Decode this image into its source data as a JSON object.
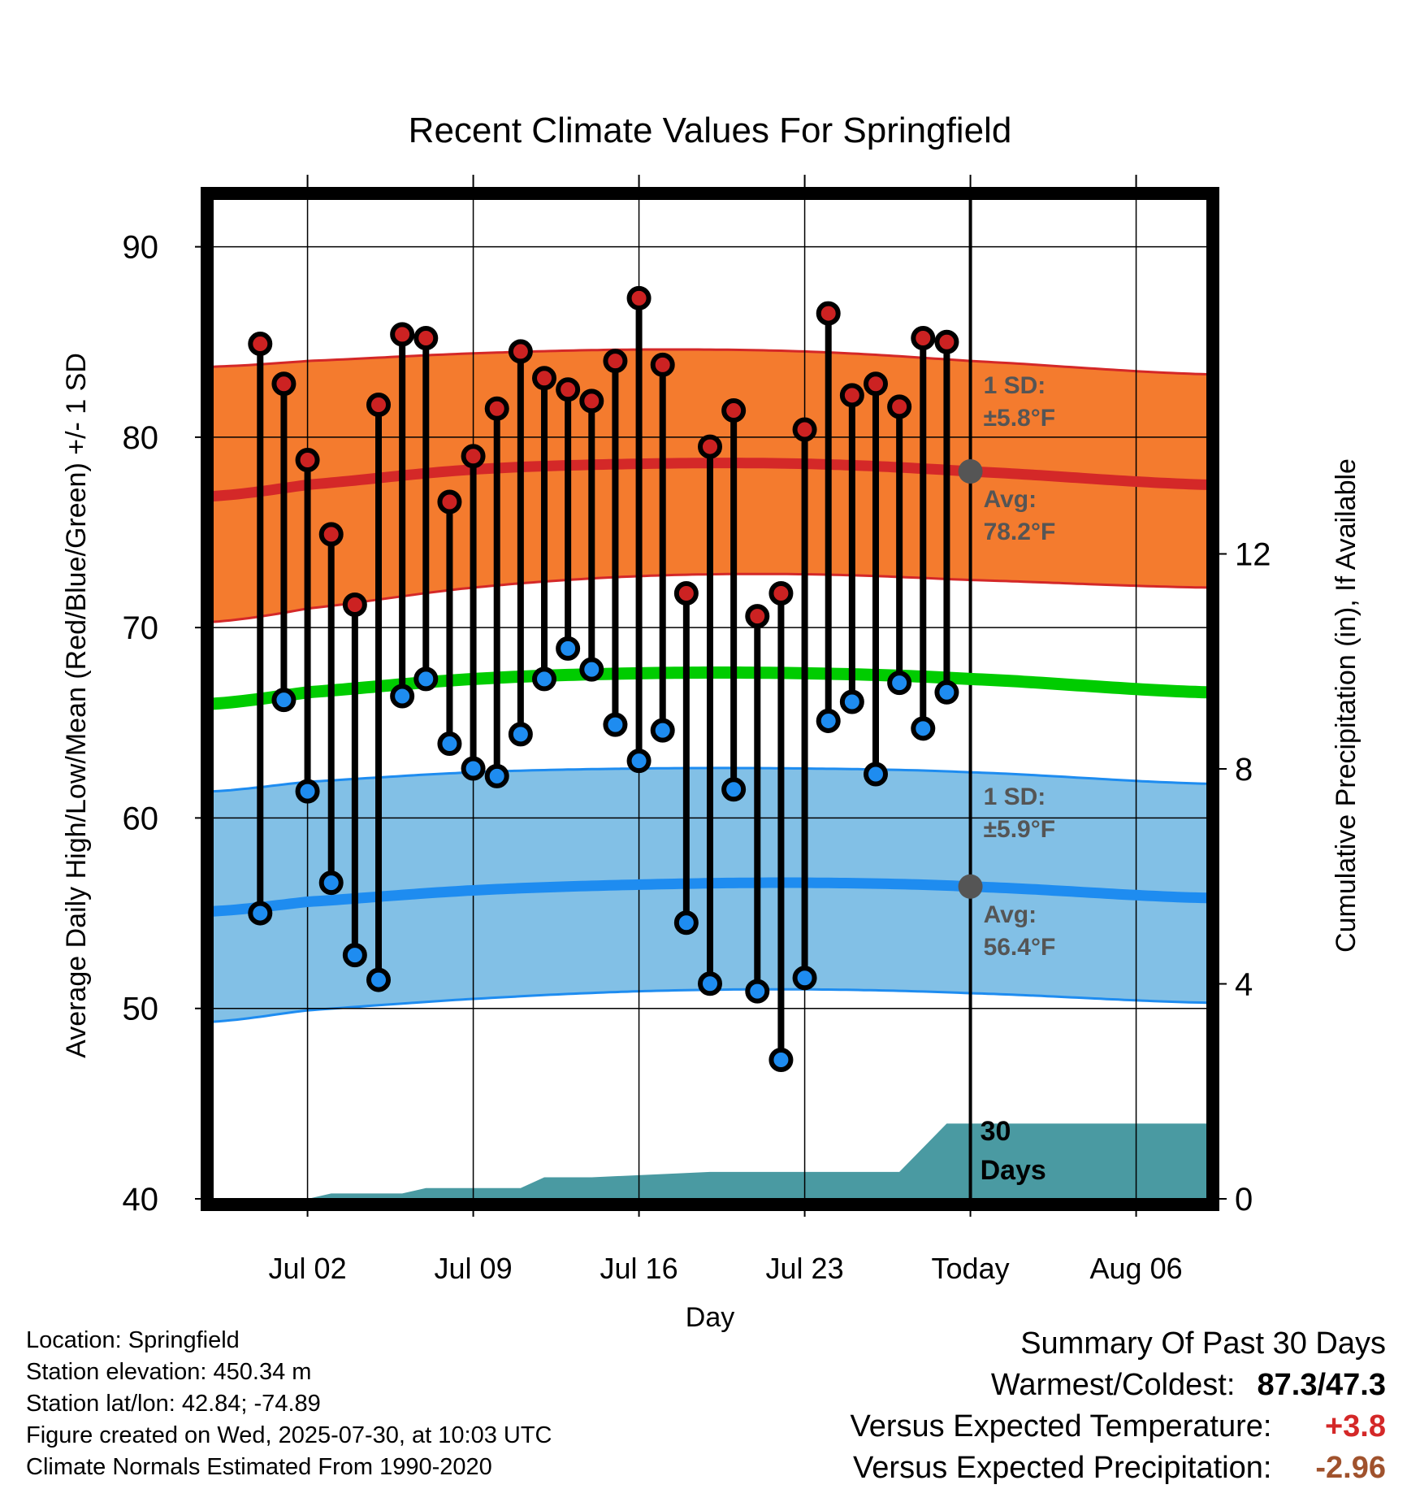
{
  "chart_data": {
    "type": "line",
    "title": "Recent Climate Values For Springfield",
    "xlabel": "Day",
    "ylabel": "Average Daily High/Low/Mean (Red/Blue/Green) +/- 1 SD",
    "y2label": "Cumulative Precipitation (in), If Available",
    "ylim": [
      40,
      92.5
    ],
    "y2lim": [
      0,
      18.6
    ],
    "xlim": [
      "2025-06-28",
      "2025-08-09"
    ],
    "x_ticks": [
      "Jul 02",
      "Jul 09",
      "Jul 16",
      "Jul 23",
      "Today",
      "Aug 06"
    ],
    "y_ticks": [
      40,
      50,
      60,
      70,
      80,
      90
    ],
    "y2_ticks": [
      0,
      4,
      8,
      12
    ],
    "today": "2025-07-30",
    "grid": true,
    "observed": {
      "dates": [
        "2025-06-30",
        "2025-07-01",
        "2025-07-02",
        "2025-07-03",
        "2025-07-04",
        "2025-07-05",
        "2025-07-06",
        "2025-07-07",
        "2025-07-08",
        "2025-07-09",
        "2025-07-10",
        "2025-07-11",
        "2025-07-12",
        "2025-07-13",
        "2025-07-14",
        "2025-07-15",
        "2025-07-16",
        "2025-07-17",
        "2025-07-18",
        "2025-07-19",
        "2025-07-20",
        "2025-07-21",
        "2025-07-22",
        "2025-07-23",
        "2025-07-24",
        "2025-07-25",
        "2025-07-26",
        "2025-07-27",
        "2025-07-28",
        "2025-07-29"
      ],
      "high": [
        84.9,
        82.8,
        78.8,
        74.9,
        71.2,
        81.7,
        85.4,
        85.2,
        76.6,
        79.0,
        81.5,
        84.5,
        83.1,
        82.5,
        81.9,
        84.0,
        87.3,
        83.8,
        71.8,
        79.5,
        81.4,
        70.6,
        71.8,
        80.4,
        86.5,
        82.2,
        82.8,
        81.6,
        85.2,
        85.0
      ],
      "low": [
        55.0,
        66.2,
        61.4,
        56.6,
        52.8,
        51.5,
        66.4,
        67.3,
        63.9,
        62.6,
        62.2,
        64.4,
        67.3,
        68.9,
        67.8,
        64.9,
        63.0,
        64.6,
        54.5,
        51.3,
        61.5,
        50.9,
        47.3,
        51.6,
        65.1,
        66.1,
        62.3,
        67.1,
        64.7,
        66.6
      ]
    },
    "normals": {
      "dates": [
        "2025-06-28",
        "2025-07-02",
        "2025-07-09",
        "2025-07-16",
        "2025-07-23",
        "2025-07-30",
        "2025-08-09"
      ],
      "avg_high": [
        76.9,
        77.5,
        78.3,
        78.6,
        78.6,
        78.2,
        77.5
      ],
      "avg_low": [
        55.1,
        55.6,
        56.2,
        56.5,
        56.6,
        56.4,
        55.8
      ],
      "avg_mean": [
        66.0,
        66.6,
        67.3,
        67.6,
        67.6,
        67.3,
        66.6
      ],
      "high_sd_upper": [
        83.7,
        84.0,
        84.4,
        84.6,
        84.5,
        84.0,
        83.3
      ],
      "high_sd_lower": [
        70.3,
        71.0,
        72.1,
        72.7,
        72.8,
        72.5,
        72.1
      ],
      "low_sd_upper": [
        61.4,
        61.9,
        62.4,
        62.6,
        62.6,
        62.4,
        61.8
      ],
      "low_sd_lower": [
        49.3,
        49.9,
        50.5,
        50.9,
        51.0,
        50.8,
        50.3
      ]
    },
    "precip_cumulative": {
      "dates": [
        "2025-06-28",
        "2025-07-01",
        "2025-07-02",
        "2025-07-03",
        "2025-07-06",
        "2025-07-07",
        "2025-07-11",
        "2025-07-12",
        "2025-07-14",
        "2025-07-19",
        "2025-07-20",
        "2025-07-26",
        "2025-07-27",
        "2025-07-29",
        "2025-08-09"
      ],
      "values": [
        0.0,
        0.0,
        0.0,
        0.1,
        0.1,
        0.2,
        0.2,
        0.4,
        0.4,
        0.5,
        0.5,
        0.5,
        0.5,
        1.4,
        1.4
      ]
    },
    "annotations": {
      "high_sd": "1 SD:",
      "high_sd_value": "±5.8°F",
      "high_avg": "Avg:",
      "high_avg_value": "78.2°F",
      "low_sd": "1 SD:",
      "low_sd_value": "±5.9°F",
      "low_avg": "Avg:",
      "low_avg_value": "56.4°F",
      "days_line1": "30",
      "days_line2": "Days"
    },
    "colors": {
      "high_band": "#F47B2E",
      "high_avg_line": "#D42828",
      "low_band": "#82C0E6",
      "low_avg_line": "#1E8CF0",
      "mean_line": "#00CC00",
      "precip": "#4A9AA2",
      "high_marker": "#CC2222",
      "low_marker": "#1E8CF0",
      "annotation_text": "#555555"
    }
  },
  "footer": {
    "location": "Location: Springfield",
    "elevation": "Station elevation: 450.34 m",
    "latlon": "Station lat/lon: 42.84; -74.89",
    "created": "Figure created on Wed, 2025-07-30, at 10:03 UTC",
    "normals": "Climate Normals Estimated From 1990-2020"
  },
  "summary": {
    "heading": "Summary Of Past 30 Days",
    "warmest_coldest_label": "Warmest/Coldest:",
    "warmest_coldest_value": "87.3/47.3",
    "temp_label": "Versus Expected Temperature:",
    "temp_value": "+3.8",
    "temp_color": "#D42828",
    "precip_label": "Versus Expected Precipitation:",
    "precip_value": "-2.96",
    "precip_color": "#A0522D"
  }
}
